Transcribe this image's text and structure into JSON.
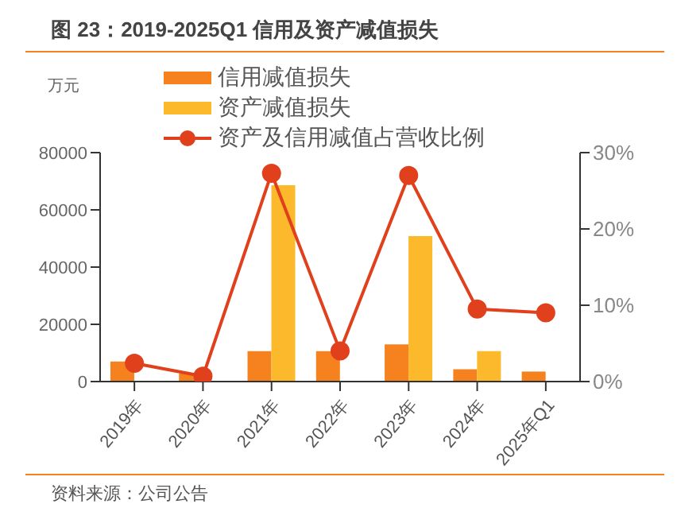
{
  "chart_data": {
    "type": "bar",
    "title": "图 23：2019-2025Q1 信用及资产减值损失",
    "ylabel": "万元",
    "annotations": [
      "资料来源：公司公告"
    ],
    "categories": [
      "2019年",
      "2020年",
      "2021年",
      "2022年",
      "2023年",
      "2024年",
      "2025年Q1"
    ],
    "series": [
      {
        "name": "信用减值损失",
        "color": "#f5821f",
        "values": [
          7000,
          2800,
          10600,
          10600,
          13000,
          4300,
          3500
        ]
      },
      {
        "name": "资产减值损失",
        "color": "#fbb92b",
        "values": [
          null,
          null,
          68600,
          null,
          50800,
          10600,
          null
        ]
      },
      {
        "name": "资产及信用减值占营收比例",
        "type": "line",
        "axis": "y2",
        "color": "#e0401c",
        "marker": "circle",
        "values": [
          2.4,
          0.7,
          27.3,
          4.0,
          27.0,
          9.5,
          9.0
        ]
      }
    ],
    "ylim": [
      0,
      80000
    ],
    "yticks": [
      0,
      20000,
      40000,
      60000,
      80000
    ],
    "y2lim": [
      0,
      30
    ],
    "y2ticks": [
      {
        "value": 0,
        "label": "0%"
      },
      {
        "value": 10,
        "label": "10%"
      },
      {
        "value": 20,
        "label": "20%"
      },
      {
        "value": 30,
        "label": "30%"
      }
    ],
    "grid": false,
    "legend": "top"
  }
}
